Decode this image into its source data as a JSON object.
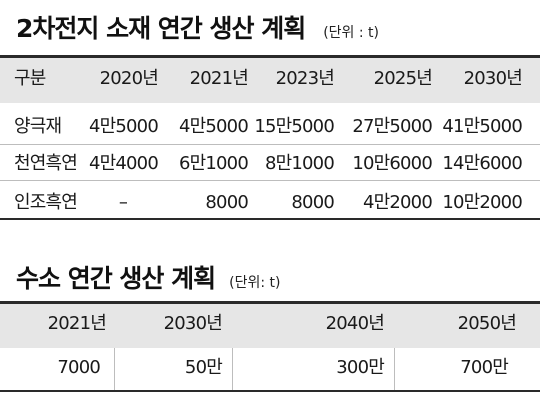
{
  "battery": {
    "title": "2차전지 소재 연간 생산 계획",
    "unit": "(단위 : t)",
    "headers": [
      "구분",
      "2020년",
      "2021년",
      "2023년",
      "2025년",
      "2030년"
    ],
    "rows": [
      [
        "양극재",
        "4만5000",
        "4만5000",
        "15만5000",
        "27만5000",
        "41만5000"
      ],
      [
        "천연흑연",
        "4만4000",
        "6만1000",
        "8만1000",
        "10만6000",
        "14만6000"
      ],
      [
        "인조흑연",
        "–",
        "8000",
        "8000",
        "4만2000",
        "10만2000"
      ]
    ]
  },
  "hydrogen": {
    "title": "수소 연간 생산 계획",
    "unit": "(단위: t)",
    "headers": [
      "2021년",
      "2030년",
      "2040년",
      "2050년"
    ],
    "values": [
      "7000",
      "50만",
      "300만",
      "700만"
    ]
  }
}
